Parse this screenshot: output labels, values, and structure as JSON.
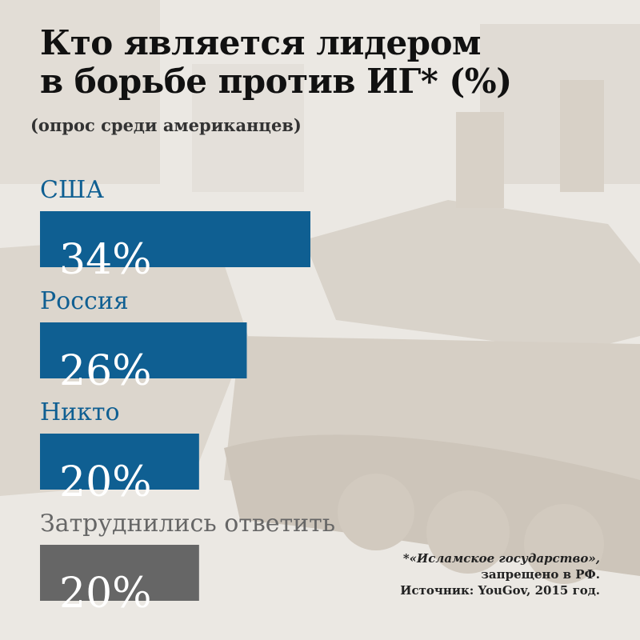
{
  "title_lines": [
    "Кто является лидером",
    "в борьбе против ИГ* (%)"
  ],
  "subtitle": "(опрос среди американцев)",
  "colors": {
    "accent": "#0f5f92",
    "gray_bar": "#666666",
    "background": "#eae7e2"
  },
  "chart_data": {
    "type": "bar",
    "orientation": "horizontal",
    "title": "Кто является лидером в борьбе против ИГ* (%)",
    "categories": [
      "США",
      "Россия",
      "Никто",
      "Затруднились ответить"
    ],
    "values": [
      34,
      26,
      20,
      20
    ],
    "value_labels": [
      "34%",
      "26%",
      "20%",
      "20%"
    ],
    "bar_colors": [
      "#0f5f92",
      "#0f5f92",
      "#0f5f92",
      "#666666"
    ],
    "category_label_colors": [
      "#0f5f92",
      "#0f5f92",
      "#0f5f92",
      "#666666"
    ],
    "xlim": [
      0,
      100
    ]
  },
  "footnote": {
    "line1": "*«Исламское государство»,",
    "line2": "запрещено в РФ.",
    "line3": "Источник: YouGov, 2015 год."
  }
}
